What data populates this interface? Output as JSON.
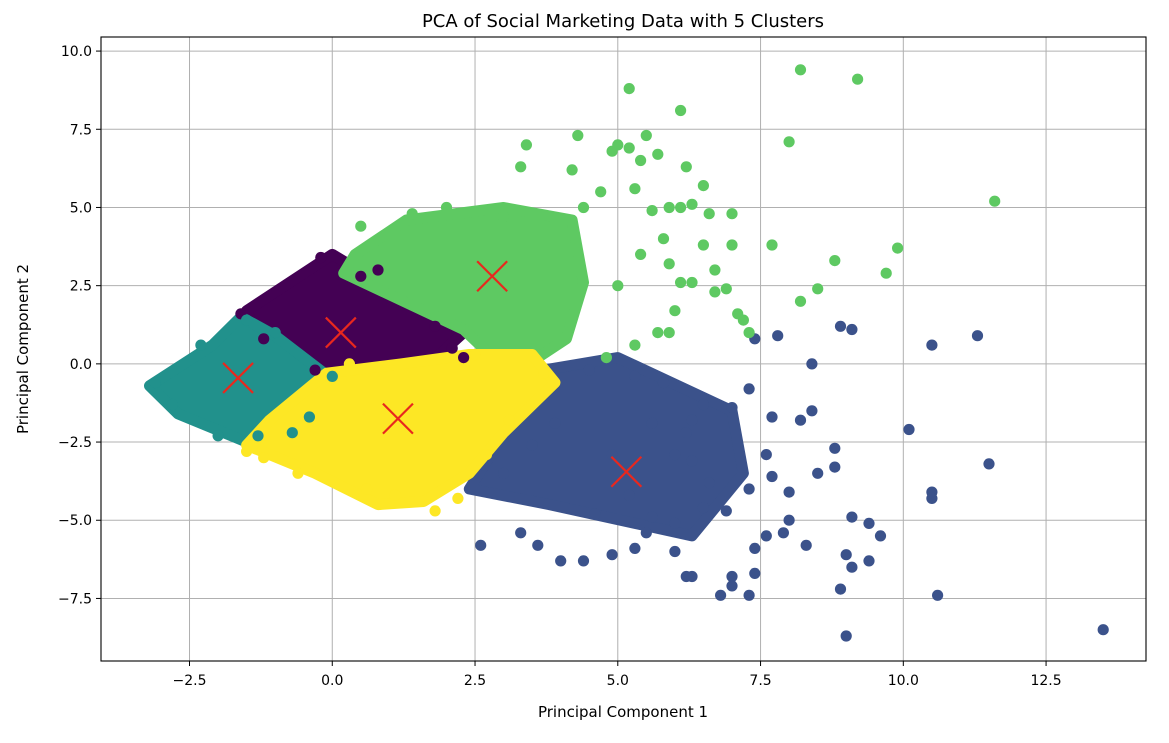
{
  "chart_data": {
    "type": "scatter",
    "title": "PCA of Social Marketing Data with 5 Clusters",
    "xlabel": "Principal Component 1",
    "ylabel": "Principal Component 2",
    "xlim": [
      -4.05,
      14.25
    ],
    "ylim": [
      -9.5,
      10.45
    ],
    "grid": true,
    "xticks": [
      -2.5,
      0.0,
      2.5,
      5.0,
      7.5,
      10.0,
      12.5
    ],
    "xtick_labels": [
      "−2.5",
      "0.0",
      "2.5",
      "5.0",
      "7.5",
      "10.0",
      "12.5"
    ],
    "yticks": [
      10.0,
      7.5,
      5.0,
      2.5,
      0.0,
      -2.5,
      -5.0,
      -7.5
    ],
    "ytick_labels": [
      "10.0",
      "7.5",
      "5.0",
      "2.5",
      "0.0",
      "−2.5",
      "−5.0",
      "−7.5"
    ],
    "clusters": [
      {
        "color": "#440154",
        "region": [
          [
            -1.5,
            1.7
          ],
          [
            0.0,
            3.5
          ],
          [
            2.3,
            1.0
          ],
          [
            1.7,
            0.0
          ],
          [
            -0.2,
            -0.3
          ],
          [
            -1.3,
            0.9
          ]
        ],
        "points": [
          [
            -1.6,
            1.6
          ],
          [
            -0.2,
            3.4
          ],
          [
            0.5,
            2.8
          ],
          [
            1.8,
            1.2
          ],
          [
            2.1,
            0.5
          ],
          [
            -0.3,
            -0.2
          ],
          [
            -1.2,
            0.8
          ],
          [
            0.8,
            3.0
          ],
          [
            2.3,
            0.2
          ]
        ]
      },
      {
        "color": "#3b528b",
        "region": [
          [
            3.7,
            -0.2
          ],
          [
            5.0,
            0.2
          ],
          [
            7.0,
            -1.5
          ],
          [
            7.2,
            -3.5
          ],
          [
            6.3,
            -5.5
          ],
          [
            3.8,
            -4.5
          ],
          [
            2.4,
            -4.0
          ]
        ],
        "points": [
          [
            7.4,
            0.8
          ],
          [
            7.8,
            0.9
          ],
          [
            8.4,
            0.0
          ],
          [
            8.9,
            1.2
          ],
          [
            9.1,
            1.1
          ],
          [
            10.5,
            0.6
          ],
          [
            11.3,
            0.9
          ],
          [
            10.1,
            -2.1
          ],
          [
            11.5,
            -3.2
          ],
          [
            10.5,
            -4.1
          ],
          [
            10.5,
            -4.3
          ],
          [
            9.6,
            -5.5
          ],
          [
            9.4,
            -5.1
          ],
          [
            9.1,
            -4.9
          ],
          [
            9.0,
            -6.1
          ],
          [
            9.1,
            -6.5
          ],
          [
            9.4,
            -6.3
          ],
          [
            8.9,
            -7.2
          ],
          [
            9.0,
            -8.7
          ],
          [
            10.6,
            -7.4
          ],
          [
            13.5,
            -8.5
          ],
          [
            7.6,
            -2.9
          ],
          [
            8.2,
            -1.8
          ],
          [
            8.5,
            -3.5
          ],
          [
            8.8,
            -2.7
          ],
          [
            8.8,
            -3.3
          ],
          [
            7.7,
            -3.6
          ],
          [
            8.0,
            -4.1
          ],
          [
            7.9,
            -5.4
          ],
          [
            8.3,
            -5.8
          ],
          [
            8.0,
            -5.0
          ],
          [
            7.6,
            -5.5
          ],
          [
            7.4,
            -5.9
          ],
          [
            6.8,
            -7.4
          ],
          [
            7.3,
            -7.4
          ],
          [
            7.0,
            -6.8
          ],
          [
            7.4,
            -6.7
          ],
          [
            7.0,
            -7.1
          ],
          [
            6.0,
            -6.0
          ],
          [
            6.2,
            -6.8
          ],
          [
            6.3,
            -6.8
          ],
          [
            6.0,
            -5.1
          ],
          [
            5.5,
            -5.4
          ],
          [
            5.3,
            -5.9
          ],
          [
            4.9,
            -6.1
          ],
          [
            4.0,
            -6.3
          ],
          [
            4.4,
            -6.3
          ],
          [
            3.6,
            -5.8
          ],
          [
            2.6,
            -5.8
          ],
          [
            3.3,
            -5.4
          ],
          [
            4.6,
            -4.8
          ],
          [
            5.6,
            -4.9
          ],
          [
            6.5,
            -4.6
          ],
          [
            6.9,
            -4.7
          ],
          [
            7.3,
            -4.0
          ],
          [
            6.6,
            -3.8
          ],
          [
            6.3,
            -3.1
          ],
          [
            6.0,
            -2.9
          ],
          [
            6.2,
            -2.2
          ],
          [
            6.5,
            -1.3
          ],
          [
            7.0,
            -1.4
          ],
          [
            7.3,
            -0.8
          ],
          [
            7.7,
            -1.7
          ],
          [
            8.4,
            -1.5
          ],
          [
            5.3,
            -0.4
          ],
          [
            5.8,
            -0.6
          ],
          [
            6.3,
            -1.8
          ],
          [
            5.6,
            -1.9
          ],
          [
            4.5,
            -0.2
          ],
          [
            4.9,
            -2.9
          ],
          [
            5.2,
            -4.2
          ],
          [
            3.5,
            -2.6
          ],
          [
            3.0,
            -3.5
          ],
          [
            3.9,
            -1.9
          ]
        ]
      },
      {
        "color": "#21918c",
        "region": [
          [
            -3.2,
            -0.7
          ],
          [
            -2.1,
            0.6
          ],
          [
            -1.6,
            1.5
          ],
          [
            -1.0,
            0.9
          ],
          [
            0.0,
            -0.5
          ],
          [
            -0.5,
            -1.8
          ],
          [
            -1.5,
            -2.5
          ],
          [
            -2.7,
            -1.6
          ]
        ],
        "points": [
          [
            -3.1,
            -0.6
          ],
          [
            -1.5,
            1.4
          ],
          [
            -2.0,
            -2.3
          ],
          [
            -1.3,
            -2.3
          ],
          [
            -0.4,
            -1.7
          ],
          [
            0.0,
            -0.4
          ],
          [
            -2.8,
            -1.3
          ],
          [
            -2.3,
            0.6
          ],
          [
            -1.0,
            1.0
          ],
          [
            -0.7,
            -2.2
          ]
        ]
      },
      {
        "color": "#5ec962",
        "region": [
          [
            0.4,
            3.5
          ],
          [
            1.3,
            4.6
          ],
          [
            3.0,
            5.0
          ],
          [
            4.2,
            4.6
          ],
          [
            4.4,
            2.6
          ],
          [
            4.1,
            0.8
          ],
          [
            3.6,
            0.2
          ],
          [
            2.7,
            0.4
          ],
          [
            2.3,
            1.1
          ],
          [
            0.2,
            2.9
          ]
        ],
        "points": [
          [
            0.5,
            4.4
          ],
          [
            1.4,
            4.8
          ],
          [
            2.0,
            5.0
          ],
          [
            3.0,
            4.7
          ],
          [
            3.3,
            6.3
          ],
          [
            3.4,
            7.0
          ],
          [
            4.2,
            6.2
          ],
          [
            4.3,
            7.3
          ],
          [
            4.4,
            5.0
          ],
          [
            4.7,
            5.5
          ],
          [
            4.9,
            6.8
          ],
          [
            5.0,
            7.0
          ],
          [
            5.2,
            6.9
          ],
          [
            5.3,
            5.6
          ],
          [
            5.5,
            7.3
          ],
          [
            5.4,
            6.5
          ],
          [
            5.7,
            6.7
          ],
          [
            5.6,
            4.9
          ],
          [
            5.9,
            5.0
          ],
          [
            5.8,
            4.0
          ],
          [
            6.1,
            8.1
          ],
          [
            6.2,
            6.3
          ],
          [
            6.1,
            5.0
          ],
          [
            6.3,
            5.1
          ],
          [
            6.5,
            5.7
          ],
          [
            6.6,
            4.8
          ],
          [
            6.5,
            3.8
          ],
          [
            6.7,
            3.0
          ],
          [
            6.3,
            2.6
          ],
          [
            6.1,
            2.6
          ],
          [
            6.0,
            1.7
          ],
          [
            5.4,
            3.5
          ],
          [
            5.9,
            3.2
          ],
          [
            5.2,
            8.8
          ],
          [
            5.0,
            2.5
          ],
          [
            5.7,
            1.0
          ],
          [
            5.9,
            1.0
          ],
          [
            6.7,
            2.3
          ],
          [
            6.9,
            2.4
          ],
          [
            7.0,
            3.8
          ],
          [
            7.0,
            4.8
          ],
          [
            7.1,
            1.6
          ],
          [
            7.2,
            1.4
          ],
          [
            7.3,
            1.0
          ],
          [
            7.7,
            3.8
          ],
          [
            8.0,
            7.1
          ],
          [
            8.2,
            9.4
          ],
          [
            8.2,
            2.0
          ],
          [
            8.5,
            2.4
          ],
          [
            8.8,
            3.3
          ],
          [
            9.2,
            9.1
          ],
          [
            9.7,
            2.9
          ],
          [
            9.9,
            3.7
          ],
          [
            11.6,
            5.2
          ],
          [
            4.8,
            0.2
          ],
          [
            5.3,
            0.6
          ]
        ]
      },
      {
        "color": "#fde725",
        "region": [
          [
            -1.1,
            -1.8
          ],
          [
            -0.1,
            -0.3
          ],
          [
            1.2,
            0.0
          ],
          [
            2.4,
            0.3
          ],
          [
            3.5,
            0.3
          ],
          [
            3.9,
            -0.6
          ],
          [
            3.0,
            -2.2
          ],
          [
            2.4,
            -3.5
          ],
          [
            1.6,
            -4.4
          ],
          [
            0.8,
            -4.5
          ],
          [
            -0.3,
            -3.5
          ],
          [
            -1.5,
            -2.6
          ]
        ],
        "points": [
          [
            -1.5,
            -2.8
          ],
          [
            -1.2,
            -3.0
          ],
          [
            3.7,
            -0.3
          ],
          [
            2.5,
            0.3
          ],
          [
            1.8,
            -4.7
          ],
          [
            2.2,
            -4.3
          ],
          [
            1.1,
            -4.2
          ],
          [
            0.6,
            -4.0
          ],
          [
            -0.6,
            -3.5
          ],
          [
            3.1,
            -1.8
          ],
          [
            2.7,
            -2.9
          ],
          [
            0.3,
            0.0
          ]
        ]
      }
    ],
    "centroids": {
      "color": "#e8281e",
      "points": [
        [
          0.15,
          1.0
        ],
        [
          5.15,
          -3.45
        ],
        [
          -1.65,
          -0.45
        ],
        [
          2.8,
          2.8
        ],
        [
          1.15,
          -1.75
        ]
      ]
    }
  }
}
